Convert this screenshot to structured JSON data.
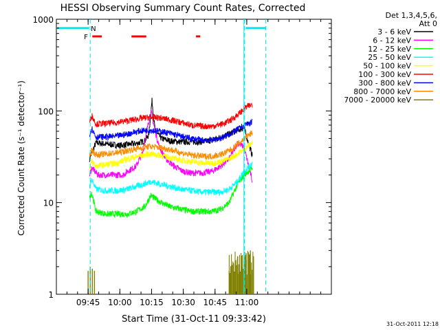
{
  "chart_data": {
    "type": "line",
    "title": "HESSI Observing Summary Count Rates, Corrected",
    "xlabel": "Start Time (31-Oct-11 09:33:42)",
    "ylabel": "Corrected Count Rate (s⁻¹ detector⁻¹)",
    "ylim": [
      1,
      1000
    ],
    "yscale": "log",
    "xlim_minutes": [
      -3.7,
      126.3
    ],
    "y_ticks": [
      {
        "value": 1,
        "label": "1"
      },
      {
        "value": 10,
        "label": "10"
      },
      {
        "value": 100,
        "label": "100"
      },
      {
        "value": 1000,
        "label": "1000"
      }
    ],
    "x_ticks": [
      {
        "minutes": 11.3,
        "label": "09:45"
      },
      {
        "minutes": 26.3,
        "label": "10:00"
      },
      {
        "minutes": 41.3,
        "label": "10:15"
      },
      {
        "minutes": 56.3,
        "label": "10:30"
      },
      {
        "minutes": 71.3,
        "label": "10:45"
      },
      {
        "minutes": 86.3,
        "label": "11:00"
      }
    ],
    "legend": {
      "header": [
        "Det 1,3,4,5,6,",
        "Att 0"
      ],
      "placement": "right"
    },
    "series": [
      {
        "name": "3 - 6 keV",
        "color": "#000000",
        "x": [
          12,
          15,
          18,
          22,
          26,
          30,
          34,
          38,
          40,
          41.5,
          43,
          46,
          50,
          55,
          60,
          65,
          70,
          74,
          78,
          82,
          85,
          89
        ],
        "y": [
          30,
          45,
          44,
          43,
          42,
          43,
          44,
          47,
          55,
          130,
          60,
          50,
          47,
          46,
          46,
          46,
          48,
          52,
          56,
          62,
          65,
          32
        ]
      },
      {
        "name": "6 - 12 keV",
        "color": "#ff00ff",
        "x": [
          12,
          13,
          16,
          20,
          25,
          28,
          30,
          34,
          37,
          39,
          41,
          43,
          45,
          48,
          52,
          56,
          60,
          65,
          70,
          74,
          78,
          82,
          85,
          89
        ],
        "y": [
          20,
          24,
          20,
          20,
          20,
          20,
          22,
          25,
          35,
          60,
          100,
          60,
          40,
          30,
          25,
          22,
          21,
          21,
          22,
          25,
          30,
          45,
          40,
          17
        ]
      },
      {
        "name": "12 - 25 keV",
        "color": "#00ff00",
        "x": [
          12,
          13,
          15,
          20,
          25,
          30,
          34,
          38,
          41,
          43,
          46,
          50,
          55,
          60,
          65,
          70,
          74,
          78,
          82,
          85,
          89
        ],
        "y": [
          11,
          13,
          8,
          7.5,
          7.5,
          7.5,
          8,
          9,
          12,
          11,
          10,
          9,
          8.5,
          8,
          8,
          8,
          8.5,
          10,
          16,
          20,
          24
        ]
      },
      {
        "name": "25 - 50 keV",
        "color": "#00ffff",
        "x": [
          12,
          13,
          15,
          20,
          25,
          30,
          34,
          38,
          41,
          45,
          50,
          55,
          60,
          65,
          70,
          74,
          78,
          82,
          85,
          89
        ],
        "y": [
          15,
          18,
          14,
          13.5,
          13.5,
          14,
          15,
          16,
          17,
          16,
          15,
          14,
          13.5,
          13,
          13,
          13,
          14,
          17,
          22,
          27
        ]
      },
      {
        "name": "50 - 100 keV",
        "color": "#ffff00",
        "x": [
          12,
          13,
          15,
          20,
          25,
          30,
          35,
          40,
          45,
          50,
          55,
          60,
          65,
          70,
          74,
          78,
          82,
          85,
          89
        ],
        "y": [
          24,
          28,
          25,
          26,
          27,
          30,
          32,
          34,
          33,
          31,
          29,
          28,
          27,
          27,
          28,
          30,
          34,
          38,
          45
        ]
      },
      {
        "name": "100 - 300 keV",
        "color": "#ff0000",
        "x": [
          12,
          13,
          15,
          20,
          25,
          30,
          35,
          40,
          45,
          50,
          55,
          60,
          65,
          70,
          75,
          79,
          83,
          86,
          89
        ],
        "y": [
          75,
          90,
          72,
          73,
          75,
          78,
          82,
          85,
          84,
          80,
          75,
          70,
          68,
          68,
          72,
          80,
          95,
          110,
          118
        ]
      },
      {
        "name": "300 - 800 keV",
        "color": "#0000ff",
        "x": [
          12,
          13,
          15,
          20,
          25,
          30,
          35,
          40,
          45,
          50,
          55,
          60,
          65,
          70,
          75,
          79,
          83,
          86,
          89
        ],
        "y": [
          55,
          65,
          52,
          52,
          53,
          56,
          60,
          62,
          60,
          57,
          53,
          50,
          48,
          48,
          51,
          57,
          65,
          72,
          75
        ]
      },
      {
        "name": "800 - 7000 keV",
        "color": "#ff8c00",
        "x": [
          12,
          13,
          15,
          20,
          25,
          30,
          35,
          40,
          45,
          50,
          55,
          60,
          65,
          70,
          75,
          79,
          83,
          86,
          89
        ],
        "y": [
          32,
          38,
          33,
          34,
          35,
          37,
          39,
          41,
          40,
          38,
          35,
          33,
          32,
          32,
          34,
          38,
          45,
          52,
          58
        ]
      },
      {
        "name": "7000 - 20000 keV",
        "color": "#808000",
        "x": [
          11.3,
          12.3,
          13.3,
          14.3,
          78,
          80,
          82,
          84,
          86,
          88,
          89.5
        ],
        "y": [
          1.8,
          2.0,
          1.9,
          1.8,
          1.8,
          2.2,
          2.6,
          2.0,
          2.8,
          3.0,
          2.6
        ]
      }
    ],
    "annotations": {
      "flags_text": [
        "F",
        "N"
      ],
      "attenuator_state_value": 800,
      "night_marks_minutes": [
        12.3,
        85.3,
        95.3
      ],
      "flare_bars_minutes": [
        [
          13.3,
          17.8
        ],
        [
          31.8,
          38.8
        ],
        [
          62.3,
          64.3
        ]
      ],
      "flare_bar_value": 650,
      "saa_fill_minutes": [
        [
          -3.7,
          11.8
        ],
        [
          85.8,
          95.3
        ]
      ]
    },
    "timestamp": "31-Oct-2011 12:18"
  }
}
